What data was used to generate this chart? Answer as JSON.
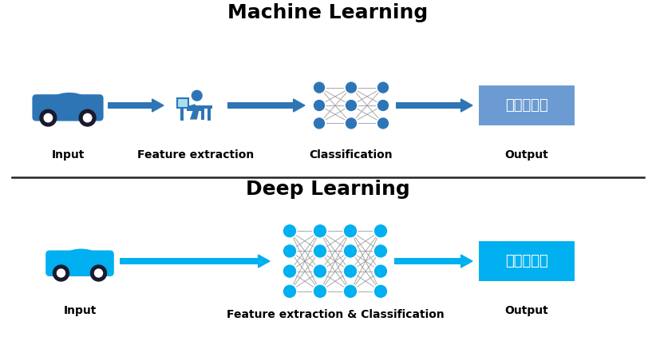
{
  "bg_color": "#ffffff",
  "title_ml": "Machine Learning",
  "title_dl": "Deep Learning",
  "title_fontsize": 18,
  "label_fontsize": 10,
  "chinese_text": "是否為車子",
  "ml_output_box_color": "#6b9bd2",
  "dl_output_box_color": "#00b0f0",
  "ml_car_color": "#2e75b6",
  "dl_car_color": "#00b0f0",
  "ml_arrow_color": "#2e75b6",
  "dl_arrow_color": "#00b0f0",
  "ml_node_color": "#2e75b6",
  "dl_node_color": "#00b0f0",
  "ml_conn_color": "#999999",
  "dl_conn_color": "#999999",
  "divider_color": "#222222",
  "ml_layers": [
    3,
    3,
    3
  ],
  "dl_layers": [
    4,
    4,
    4,
    4
  ],
  "ml_node_r": 8,
  "dl_node_r": 9
}
